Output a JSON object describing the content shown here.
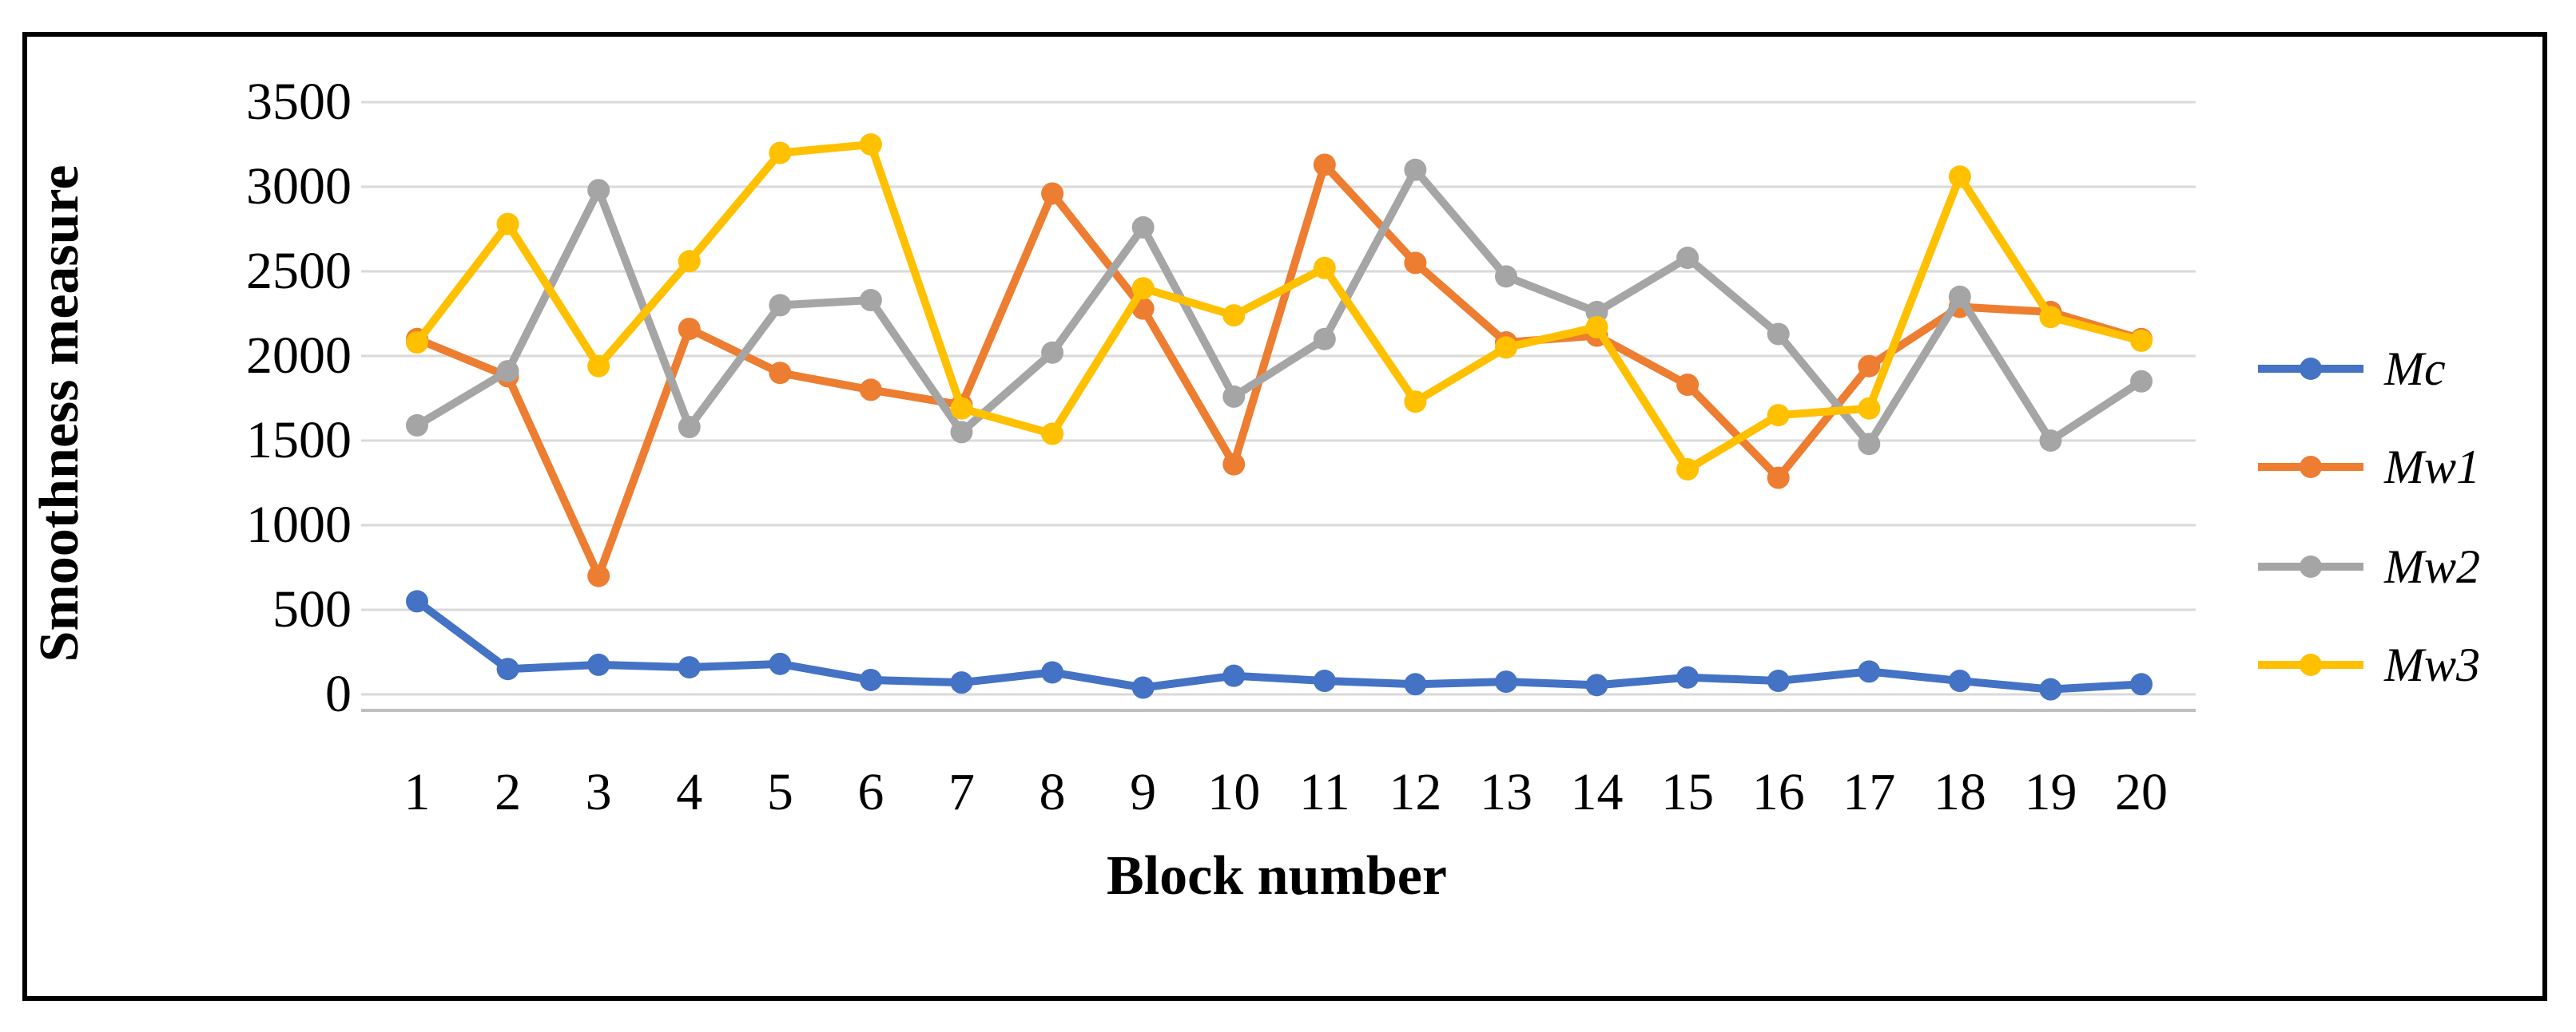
{
  "chart_data": {
    "type": "line",
    "title": "",
    "xlabel": "Block number",
    "ylabel": "Smoothness measure",
    "x": [
      1,
      2,
      3,
      4,
      5,
      6,
      7,
      8,
      9,
      10,
      11,
      12,
      13,
      14,
      15,
      16,
      17,
      18,
      19,
      20
    ],
    "yticks": [
      0,
      500,
      1000,
      1500,
      2000,
      2500,
      3000,
      3500
    ],
    "ylim": [
      0,
      3500
    ],
    "grid": true,
    "legend_position": "right",
    "gridline_color": "#D9D9D9",
    "axisline_color": "#BFBFBF",
    "series": [
      {
        "name": "Mc",
        "color": "#4472C4",
        "values": [
          550,
          150,
          175,
          160,
          180,
          85,
          70,
          130,
          40,
          110,
          80,
          60,
          75,
          55,
          100,
          80,
          135,
          80,
          30,
          60
        ]
      },
      {
        "name": "Mw1",
        "color": "#ED7D31",
        "values": [
          2100,
          1880,
          700,
          2160,
          1900,
          1800,
          1710,
          2960,
          2280,
          1360,
          3130,
          2550,
          2080,
          2120,
          1830,
          1280,
          1940,
          2290,
          2260,
          2100
        ]
      },
      {
        "name": "Mw2",
        "color": "#A5A5A5",
        "values": [
          1590,
          1910,
          2980,
          1580,
          2300,
          2330,
          1550,
          2020,
          2760,
          1760,
          2100,
          3100,
          2470,
          2260,
          2580,
          2130,
          1480,
          2350,
          1500,
          1850
        ]
      },
      {
        "name": "Mw3",
        "color": "#FFC000",
        "values": [
          2080,
          2780,
          1940,
          2560,
          3200,
          3250,
          1690,
          1540,
          2400,
          2240,
          2520,
          1730,
          2050,
          2170,
          1330,
          1650,
          1690,
          3060,
          2230,
          2090
        ]
      }
    ]
  }
}
